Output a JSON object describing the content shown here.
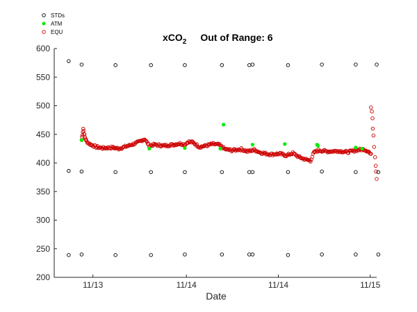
{
  "chart_data": {
    "type": "scatter",
    "title": "xCO2",
    "title_sub": "2",
    "title_main": "xCO",
    "title_extra": "Out of Range: 6",
    "xlabel": "Date",
    "ylabel": "",
    "xlim": [
      0,
      10
    ],
    "ylim": [
      200,
      600
    ],
    "yticks": [
      200,
      250,
      300,
      350,
      400,
      450,
      500,
      550,
      600
    ],
    "xticks": [
      {
        "pos": 1.2,
        "label": "11/13"
      },
      {
        "pos": 4.1,
        "label": "11/14"
      },
      {
        "pos": 6.95,
        "label": "11/14"
      },
      {
        "pos": 9.8,
        "label": "11/15"
      }
    ],
    "legend_position": "top-left-outside",
    "series": [
      {
        "name": "STDs",
        "color": "#000000",
        "marker": "open-circle",
        "x": [
          0.45,
          0.85,
          1.9,
          3.0,
          4.05,
          5.2,
          6.05,
          6.15,
          7.25,
          8.3,
          9.35,
          10.0,
          0.45,
          0.85,
          1.9,
          3.0,
          4.05,
          5.2,
          6.05,
          6.15,
          7.25,
          8.3,
          9.35,
          10.05,
          0.45,
          0.85,
          1.9,
          3.0,
          4.05,
          5.2,
          6.05,
          6.15,
          7.25,
          8.3,
          9.35,
          10.05
        ],
        "y": [
          578,
          572,
          571,
          571,
          571,
          571,
          571,
          572,
          571,
          572,
          572,
          572,
          386,
          385,
          384,
          384,
          384,
          384,
          384,
          384,
          384,
          385,
          384,
          384,
          239,
          240,
          239,
          239,
          240,
          240,
          240,
          240,
          239,
          240,
          240,
          240
        ]
      },
      {
        "name": "ATM",
        "color": "#00ee00",
        "marker": "filled-circle",
        "x": [
          0.85,
          2.95,
          4.05,
          5.15,
          5.25,
          6.15,
          7.15,
          8.15,
          8.18,
          9.35,
          9.55
        ],
        "y": [
          440,
          425,
          426,
          425,
          467,
          432,
          433,
          432,
          430,
          427,
          425
        ]
      },
      {
        "name": "EQU",
        "color": "#cc0000",
        "marker": "open-circle",
        "x": [],
        "y": [],
        "trace": [
          [
            0.85,
            440
          ],
          [
            0.9,
            460
          ],
          [
            0.95,
            445
          ],
          [
            1.0,
            438
          ],
          [
            1.1,
            433
          ],
          [
            1.3,
            428
          ],
          [
            1.5,
            426
          ],
          [
            1.8,
            427
          ],
          [
            2.0,
            425
          ],
          [
            2.3,
            430
          ],
          [
            2.6,
            436
          ],
          [
            2.8,
            442
          ],
          [
            2.95,
            430
          ],
          [
            3.1,
            432
          ],
          [
            3.4,
            430
          ],
          [
            3.7,
            432
          ],
          [
            3.9,
            434
          ],
          [
            4.05,
            432
          ],
          [
            4.15,
            437
          ],
          [
            4.3,
            436
          ],
          [
            4.5,
            428
          ],
          [
            4.7,
            430
          ],
          [
            4.9,
            433
          ],
          [
            5.1,
            432
          ],
          [
            5.3,
            424
          ],
          [
            5.5,
            422
          ],
          [
            5.8,
            424
          ],
          [
            6.0,
            420
          ],
          [
            6.2,
            423
          ],
          [
            6.4,
            418
          ],
          [
            6.7,
            415
          ],
          [
            7.0,
            416
          ],
          [
            7.2,
            413
          ],
          [
            7.4,
            417
          ],
          [
            7.6,
            410
          ],
          [
            7.8,
            406
          ],
          [
            7.95,
            404
          ],
          [
            8.05,
            418
          ],
          [
            8.2,
            422
          ],
          [
            8.5,
            420
          ],
          [
            8.8,
            421
          ],
          [
            9.1,
            419
          ],
          [
            9.35,
            422
          ],
          [
            9.6,
            424
          ],
          [
            9.75,
            420
          ],
          [
            9.85,
            412
          ]
        ],
        "outliers_x": [
          9.82,
          9.85,
          9.87,
          9.88,
          9.9,
          9.92,
          9.95,
          9.97,
          9.98,
          10.0
        ],
        "outliers_y": [
          497,
          490,
          478,
          460,
          448,
          428,
          410,
          395,
          385,
          372
        ]
      }
    ]
  },
  "legend": {
    "items": [
      {
        "label": "STDs"
      },
      {
        "label": "ATM"
      },
      {
        "label": "EQU"
      }
    ]
  }
}
